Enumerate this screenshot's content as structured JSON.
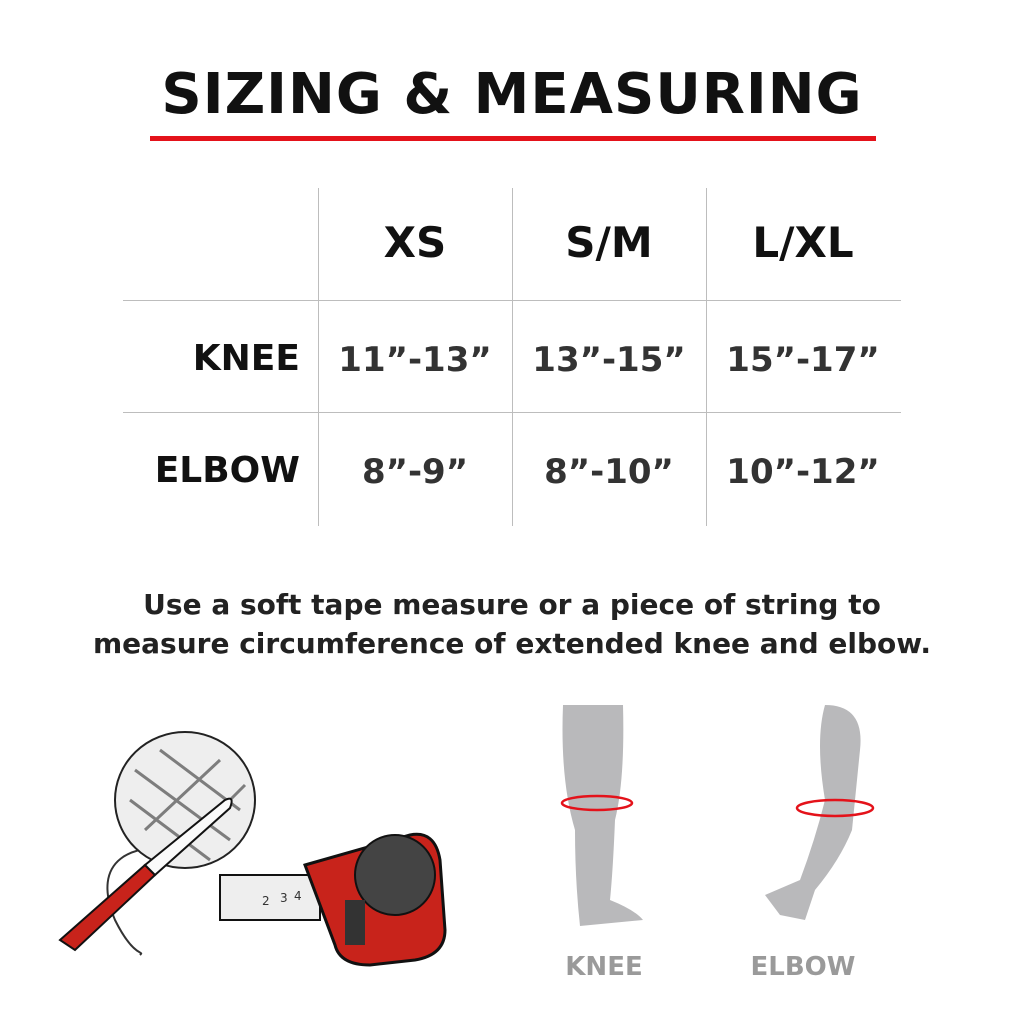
{
  "title": "SIZING & MEASURING",
  "colors": {
    "accent": "#e4121a",
    "limb": "#b9b9bb",
    "caption": "#9a9a9a"
  },
  "table": {
    "columns": [
      "XS",
      "S/M",
      "L/XL"
    ],
    "rows": [
      {
        "label": "KNEE",
        "values": [
          "11”-13”",
          "13”-15”",
          "15”-17”"
        ]
      },
      {
        "label": "ELBOW",
        "values": [
          "8”-9”",
          "8”-10”",
          "10”-12”"
        ]
      }
    ]
  },
  "instructions": [
    "Use a soft tape measure or a piece of string to",
    "measure circumference of extended knee and elbow."
  ],
  "illustration": {
    "tape_numbers": [
      "2",
      "3",
      "4"
    ]
  },
  "captions": {
    "knee": "KNEE",
    "elbow": "ELBOW"
  }
}
